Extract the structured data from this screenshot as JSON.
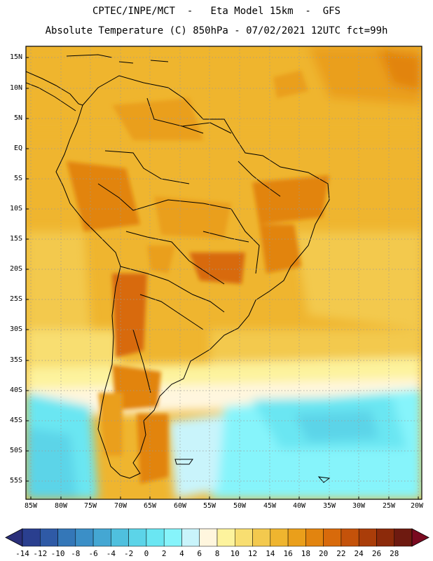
{
  "title_line1": "CPTEC/INPE/MCT  -   Eta Model 15km  -  GFS",
  "title_line2": "Absolute Temperature (C) 850hPa - 07/02/2021 12UTC fct=99h",
  "lat_labels": [
    "15N",
    "10N",
    "5N",
    "EQ",
    "5S",
    "10S",
    "15S",
    "20S",
    "25S",
    "30S",
    "35S",
    "40S",
    "45S",
    "50S",
    "55S"
  ],
  "lon_labels": [
    "85W",
    "80W",
    "75W",
    "70W",
    "65W",
    "60W",
    "55W",
    "50W",
    "45W",
    "40W",
    "35W",
    "30W",
    "25W",
    "20W"
  ],
  "colorbar": {
    "labels": [
      "-14",
      "-12",
      "-10",
      "-8",
      "-6",
      "-4",
      "-2",
      "0",
      "2",
      "4",
      "6",
      "8",
      "10",
      "12",
      "14",
      "16",
      "18",
      "20",
      "22",
      "24",
      "26",
      "28"
    ],
    "colors": [
      "#2a3f8f",
      "#2f5aa6",
      "#3477b8",
      "#3b8fc7",
      "#44a7d3",
      "#4fc0de",
      "#5cd4e8",
      "#6ae6f2",
      "#86f4fb",
      "#c9f4fb",
      "#fff6de",
      "#fdf39d",
      "#f8de71",
      "#f3c94e",
      "#efb52f",
      "#ea9f1b",
      "#e2840f",
      "#d86a0b",
      "#c4520a",
      "#aa3d09",
      "#8c2a0a",
      "#6e1a10"
    ],
    "under_color": "#2a2f7a",
    "over_color": "#7a0a20"
  }
}
